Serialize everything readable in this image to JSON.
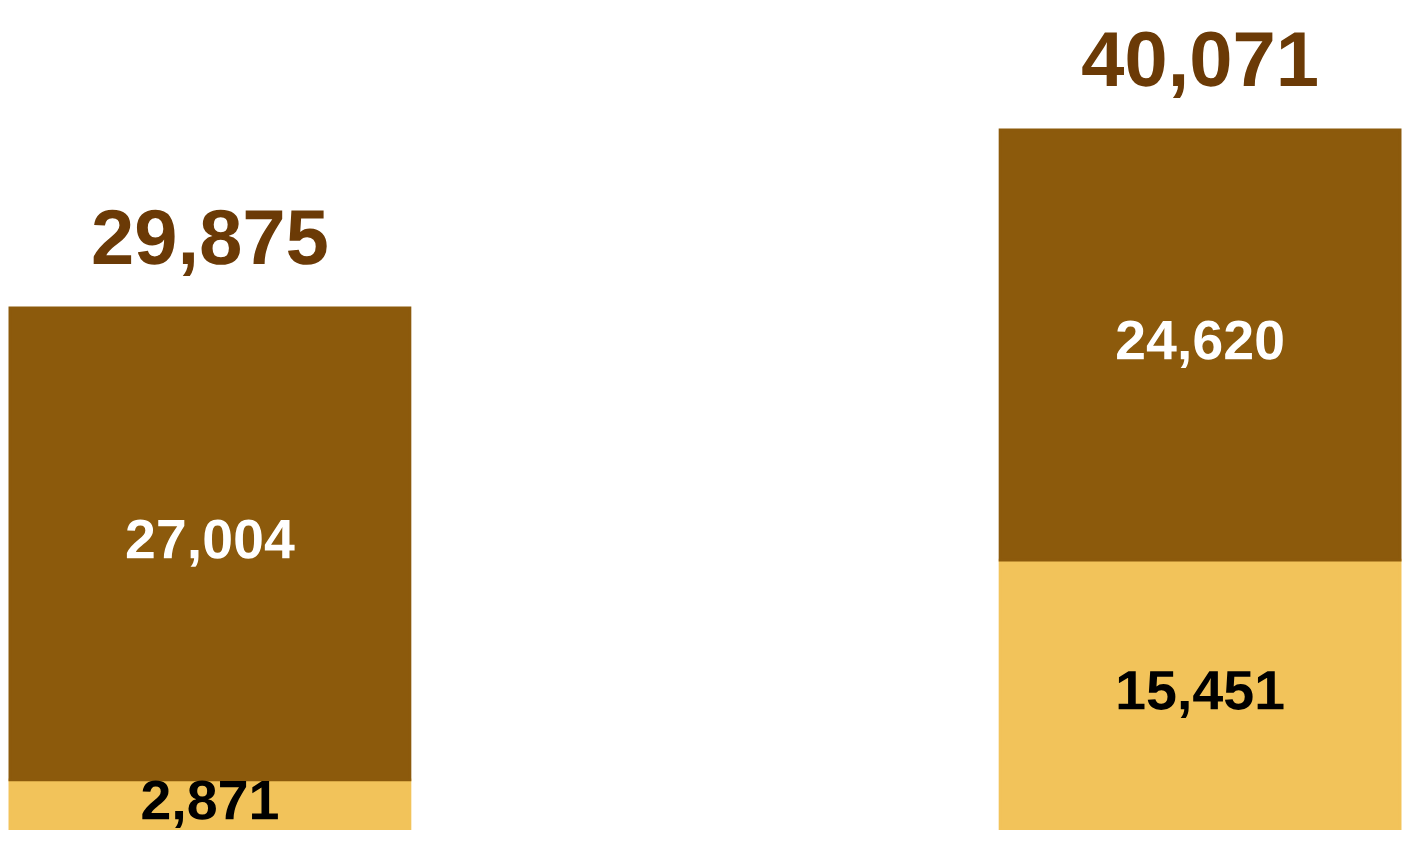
{
  "chart_data": {
    "type": "bar",
    "stacked": true,
    "categories": [
      null,
      null
    ],
    "series": [
      {
        "color": "#f2c35a",
        "values": [
          2871,
          15451
        ],
        "value_labels": [
          "2,871",
          "15,451"
        ]
      },
      {
        "color": "#8c5a0c",
        "values": [
          27004,
          24620
        ],
        "value_labels": [
          "27,004",
          "24,620"
        ]
      }
    ],
    "totals": [
      "29,875",
      "40,071"
    ],
    "grid": false,
    "legend": false
  }
}
